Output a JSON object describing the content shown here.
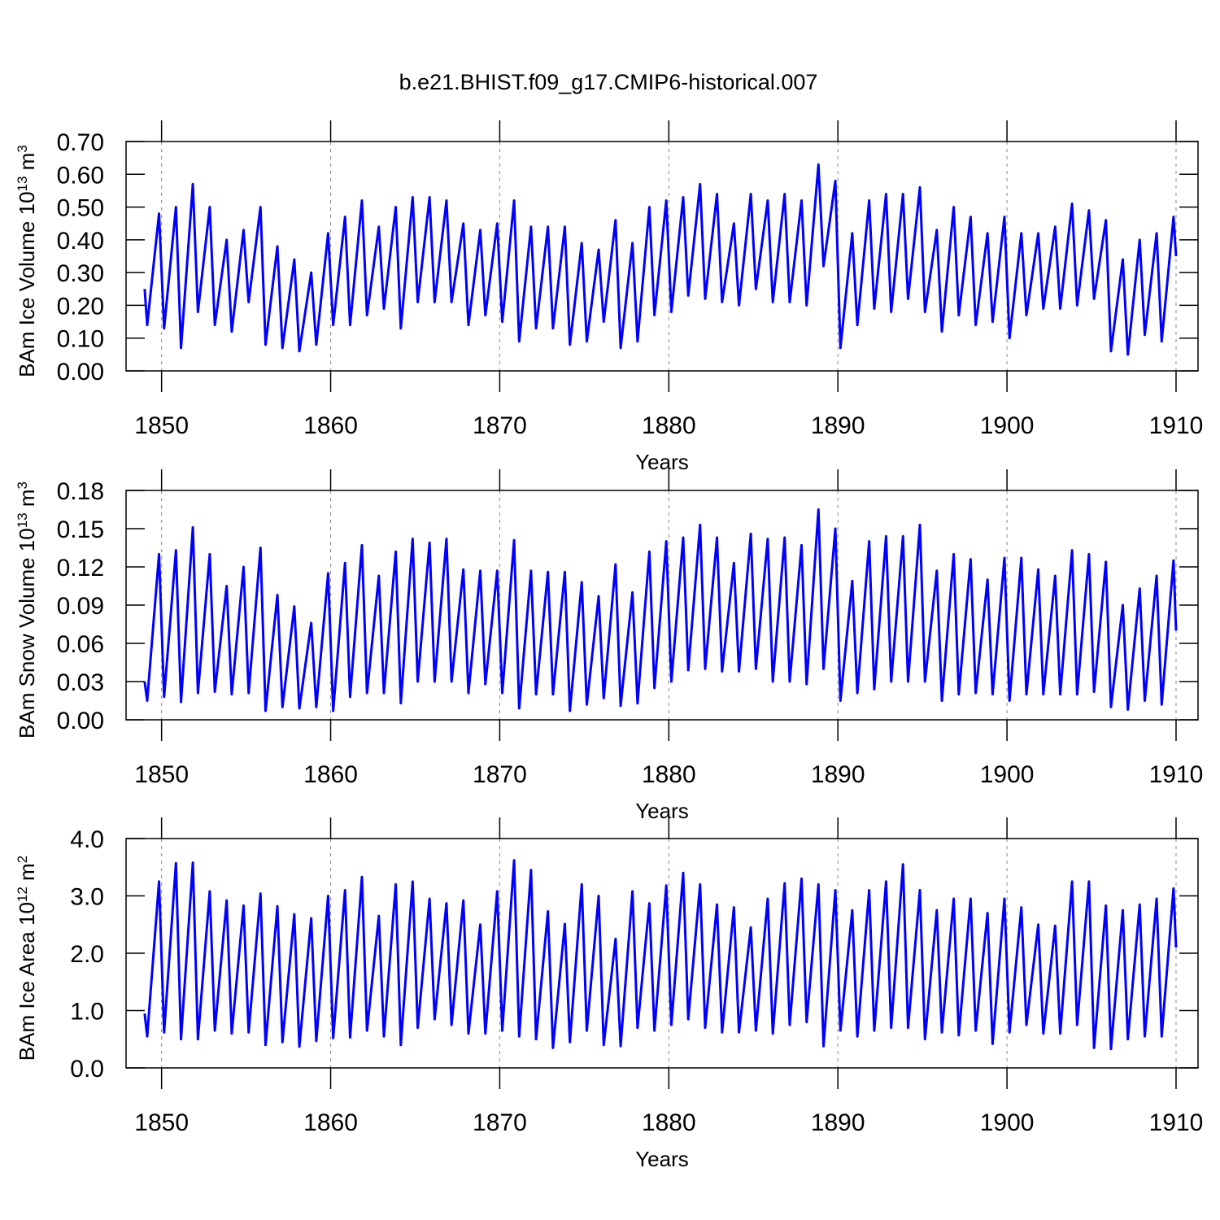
{
  "chart_data": [
    {
      "type": "line",
      "title": "b.e21.BHIST.f09_g17.CMIP6-historical.007",
      "ylabel": {
        "text": "BAm Ice Volume 10",
        "exponent": "13",
        "unit": " m",
        "unit_exponent": "3"
      },
      "xlabel": "Years",
      "color": "#0000ff",
      "xgrid": true,
      "xlim": [
        1847.9,
        1911.3
      ],
      "xticks": [
        1850,
        1860,
        1870,
        1880,
        1890,
        1900,
        1910
      ],
      "ylim": [
        0,
        0.7
      ],
      "yticks": [
        {
          "value": 0,
          "label": "0.00"
        },
        {
          "value": 0.1,
          "label": "0.10"
        },
        {
          "value": 0.2,
          "label": "0.20"
        },
        {
          "value": 0.3,
          "label": "0.30"
        },
        {
          "value": 0.4,
          "label": "0.40"
        },
        {
          "value": 0.5,
          "label": "0.50"
        },
        {
          "value": 0.6,
          "label": "0.60"
        },
        {
          "value": 0.7,
          "label": "0.70"
        }
      ],
      "x": [
        1849.0,
        1849.15,
        1849.85,
        1850.15,
        1850.85,
        1851.15,
        1851.85,
        1852.15,
        1852.85,
        1853.15,
        1853.85,
        1854.15,
        1854.85,
        1855.15,
        1855.85,
        1856.15,
        1856.85,
        1857.15,
        1857.85,
        1858.15,
        1858.85,
        1859.15,
        1859.85,
        1860.15,
        1860.85,
        1861.15,
        1861.85,
        1862.15,
        1862.85,
        1863.15,
        1863.85,
        1864.15,
        1864.85,
        1865.15,
        1865.85,
        1866.15,
        1866.85,
        1867.15,
        1867.85,
        1868.15,
        1868.85,
        1869.15,
        1869.85,
        1870.15,
        1870.85,
        1871.15,
        1871.85,
        1872.15,
        1872.85,
        1873.15,
        1873.85,
        1874.15,
        1874.85,
        1875.15,
        1875.85,
        1876.15,
        1876.85,
        1877.15,
        1877.85,
        1878.15,
        1878.85,
        1879.15,
        1879.85,
        1880.15,
        1880.85,
        1881.15,
        1881.85,
        1882.15,
        1882.85,
        1883.15,
        1883.85,
        1884.15,
        1884.85,
        1885.15,
        1885.85,
        1886.15,
        1886.85,
        1887.15,
        1887.85,
        1888.15,
        1888.85,
        1889.15,
        1889.85,
        1890.15,
        1890.85,
        1891.15,
        1891.85,
        1892.15,
        1892.85,
        1893.15,
        1893.85,
        1894.15,
        1894.85,
        1895.15,
        1895.85,
        1896.15,
        1896.85,
        1897.15,
        1897.85,
        1898.15,
        1898.85,
        1899.15,
        1899.85,
        1900.15,
        1900.85,
        1901.15,
        1901.85,
        1902.15,
        1902.85,
        1903.15,
        1903.85,
        1904.15,
        1904.85,
        1905.15,
        1905.85,
        1906.15,
        1906.85,
        1907.15,
        1907.85,
        1908.15,
        1908.85,
        1909.15,
        1909.85,
        1910.0
      ],
      "values": [
        0.25,
        0.14,
        0.48,
        0.13,
        0.5,
        0.07,
        0.57,
        0.18,
        0.5,
        0.14,
        0.4,
        0.12,
        0.43,
        0.21,
        0.5,
        0.08,
        0.38,
        0.07,
        0.34,
        0.06,
        0.3,
        0.08,
        0.42,
        0.14,
        0.47,
        0.14,
        0.52,
        0.17,
        0.44,
        0.19,
        0.5,
        0.13,
        0.53,
        0.21,
        0.53,
        0.21,
        0.52,
        0.21,
        0.45,
        0.14,
        0.43,
        0.17,
        0.45,
        0.15,
        0.52,
        0.09,
        0.44,
        0.13,
        0.44,
        0.13,
        0.44,
        0.08,
        0.39,
        0.09,
        0.37,
        0.15,
        0.46,
        0.07,
        0.39,
        0.09,
        0.5,
        0.17,
        0.52,
        0.18,
        0.53,
        0.23,
        0.57,
        0.22,
        0.54,
        0.21,
        0.45,
        0.2,
        0.54,
        0.25,
        0.52,
        0.21,
        0.54,
        0.21,
        0.52,
        0.2,
        0.63,
        0.32,
        0.58,
        0.07,
        0.42,
        0.14,
        0.52,
        0.19,
        0.54,
        0.18,
        0.54,
        0.22,
        0.56,
        0.18,
        0.43,
        0.12,
        0.5,
        0.17,
        0.47,
        0.14,
        0.42,
        0.15,
        0.47,
        0.1,
        0.42,
        0.17,
        0.42,
        0.19,
        0.44,
        0.19,
        0.51,
        0.2,
        0.49,
        0.22,
        0.46,
        0.06,
        0.34,
        0.05,
        0.4,
        0.11,
        0.42,
        0.09,
        0.47,
        0.35
      ]
    },
    {
      "type": "line",
      "ylabel": {
        "text": "BAm Snow Volume 10",
        "exponent": "13",
        "unit": " m",
        "unit_exponent": "3"
      },
      "xlabel": "Years",
      "color": "#0000ff",
      "xgrid": true,
      "xlim": [
        1847.9,
        1911.3
      ],
      "xticks": [
        1850,
        1860,
        1870,
        1880,
        1890,
        1900,
        1910
      ],
      "ylim": [
        0,
        0.18
      ],
      "yticks": [
        {
          "value": 0,
          "label": "0.00"
        },
        {
          "value": 0.03,
          "label": "0.03"
        },
        {
          "value": 0.06,
          "label": "0.06"
        },
        {
          "value": 0.09,
          "label": "0.09"
        },
        {
          "value": 0.12,
          "label": "0.12"
        },
        {
          "value": 0.15,
          "label": "0.15"
        },
        {
          "value": 0.18,
          "label": "0.18"
        }
      ],
      "x": [
        1849.0,
        1849.15,
        1849.85,
        1850.15,
        1850.85,
        1851.15,
        1851.85,
        1852.15,
        1852.85,
        1853.15,
        1853.85,
        1854.15,
        1854.85,
        1855.15,
        1855.85,
        1856.15,
        1856.85,
        1857.15,
        1857.85,
        1858.15,
        1858.85,
        1859.15,
        1859.85,
        1860.15,
        1860.85,
        1861.15,
        1861.85,
        1862.15,
        1862.85,
        1863.15,
        1863.85,
        1864.15,
        1864.85,
        1865.15,
        1865.85,
        1866.15,
        1866.85,
        1867.15,
        1867.85,
        1868.15,
        1868.85,
        1869.15,
        1869.85,
        1870.15,
        1870.85,
        1871.15,
        1871.85,
        1872.15,
        1872.85,
        1873.15,
        1873.85,
        1874.15,
        1874.85,
        1875.15,
        1875.85,
        1876.15,
        1876.85,
        1877.15,
        1877.85,
        1878.15,
        1878.85,
        1879.15,
        1879.85,
        1880.15,
        1880.85,
        1881.15,
        1881.85,
        1882.15,
        1882.85,
        1883.15,
        1883.85,
        1884.15,
        1884.85,
        1885.15,
        1885.85,
        1886.15,
        1886.85,
        1887.15,
        1887.85,
        1888.15,
        1888.85,
        1889.15,
        1889.85,
        1890.15,
        1890.85,
        1891.15,
        1891.85,
        1892.15,
        1892.85,
        1893.15,
        1893.85,
        1894.15,
        1894.85,
        1895.15,
        1895.85,
        1896.15,
        1896.85,
        1897.15,
        1897.85,
        1898.15,
        1898.85,
        1899.15,
        1899.85,
        1900.15,
        1900.85,
        1901.15,
        1901.85,
        1902.15,
        1902.85,
        1903.15,
        1903.85,
        1904.15,
        1904.85,
        1905.15,
        1905.85,
        1906.15,
        1906.85,
        1907.15,
        1907.85,
        1908.15,
        1908.85,
        1909.15,
        1909.85,
        1910.0
      ],
      "values": [
        0.03,
        0.015,
        0.13,
        0.018,
        0.133,
        0.014,
        0.151,
        0.021,
        0.13,
        0.022,
        0.105,
        0.02,
        0.12,
        0.021,
        0.135,
        0.007,
        0.098,
        0.01,
        0.089,
        0.009,
        0.076,
        0.01,
        0.115,
        0.007,
        0.123,
        0.018,
        0.137,
        0.021,
        0.113,
        0.021,
        0.132,
        0.013,
        0.142,
        0.03,
        0.139,
        0.03,
        0.142,
        0.03,
        0.118,
        0.021,
        0.117,
        0.028,
        0.117,
        0.021,
        0.141,
        0.009,
        0.117,
        0.02,
        0.116,
        0.02,
        0.116,
        0.007,
        0.108,
        0.012,
        0.097,
        0.017,
        0.122,
        0.011,
        0.1,
        0.013,
        0.132,
        0.025,
        0.14,
        0.03,
        0.143,
        0.039,
        0.153,
        0.04,
        0.143,
        0.038,
        0.123,
        0.038,
        0.146,
        0.04,
        0.142,
        0.03,
        0.143,
        0.03,
        0.137,
        0.028,
        0.165,
        0.04,
        0.15,
        0.015,
        0.109,
        0.021,
        0.14,
        0.024,
        0.144,
        0.03,
        0.144,
        0.03,
        0.153,
        0.03,
        0.117,
        0.015,
        0.13,
        0.02,
        0.126,
        0.021,
        0.11,
        0.02,
        0.127,
        0.015,
        0.127,
        0.02,
        0.118,
        0.02,
        0.113,
        0.02,
        0.133,
        0.02,
        0.13,
        0.022,
        0.124,
        0.01,
        0.09,
        0.008,
        0.103,
        0.015,
        0.113,
        0.012,
        0.125,
        0.07
      ]
    },
    {
      "type": "line",
      "ylabel": {
        "text": "BAm Ice Area 10",
        "exponent": "12",
        "unit": " m",
        "unit_exponent": "2"
      },
      "xlabel": "Years",
      "color": "#0000ff",
      "xgrid": true,
      "xlim": [
        1847.9,
        1911.3
      ],
      "xticks": [
        1850,
        1860,
        1870,
        1880,
        1890,
        1900,
        1910
      ],
      "ylim": [
        0,
        4
      ],
      "yticks": [
        {
          "value": 0,
          "label": "0.0"
        },
        {
          "value": 1,
          "label": "1.0"
        },
        {
          "value": 2,
          "label": "2.0"
        },
        {
          "value": 3,
          "label": "3.0"
        },
        {
          "value": 4,
          "label": "4.0"
        }
      ],
      "x": [
        1849.0,
        1849.15,
        1849.85,
        1850.15,
        1850.85,
        1851.15,
        1851.85,
        1852.15,
        1852.85,
        1853.15,
        1853.85,
        1854.15,
        1854.85,
        1855.15,
        1855.85,
        1856.15,
        1856.85,
        1857.15,
        1857.85,
        1858.15,
        1858.85,
        1859.15,
        1859.85,
        1860.15,
        1860.85,
        1861.15,
        1861.85,
        1862.15,
        1862.85,
        1863.15,
        1863.85,
        1864.15,
        1864.85,
        1865.15,
        1865.85,
        1866.15,
        1866.85,
        1867.15,
        1867.85,
        1868.15,
        1868.85,
        1869.15,
        1869.85,
        1870.15,
        1870.85,
        1871.15,
        1871.85,
        1872.15,
        1872.85,
        1873.15,
        1873.85,
        1874.15,
        1874.85,
        1875.15,
        1875.85,
        1876.15,
        1876.85,
        1877.15,
        1877.85,
        1878.15,
        1878.85,
        1879.15,
        1879.85,
        1880.15,
        1880.85,
        1881.15,
        1881.85,
        1882.15,
        1882.85,
        1883.15,
        1883.85,
        1884.15,
        1884.85,
        1885.15,
        1885.85,
        1886.15,
        1886.85,
        1887.15,
        1887.85,
        1888.15,
        1888.85,
        1889.15,
        1889.85,
        1890.15,
        1890.85,
        1891.15,
        1891.85,
        1892.15,
        1892.85,
        1893.15,
        1893.85,
        1894.15,
        1894.85,
        1895.15,
        1895.85,
        1896.15,
        1896.85,
        1897.15,
        1897.85,
        1898.15,
        1898.85,
        1899.15,
        1899.85,
        1900.15,
        1900.85,
        1901.15,
        1901.85,
        1902.15,
        1902.85,
        1903.15,
        1903.85,
        1904.15,
        1904.85,
        1905.15,
        1905.85,
        1906.15,
        1906.85,
        1907.15,
        1907.85,
        1908.15,
        1908.85,
        1909.15,
        1909.85,
        1910.0
      ],
      "values": [
        0.95,
        0.55,
        3.25,
        0.62,
        3.57,
        0.5,
        3.58,
        0.5,
        3.08,
        0.65,
        2.92,
        0.6,
        2.83,
        0.62,
        3.04,
        0.4,
        2.82,
        0.45,
        2.68,
        0.37,
        2.61,
        0.47,
        3.0,
        0.52,
        3.1,
        0.53,
        3.33,
        0.65,
        2.65,
        0.55,
        3.2,
        0.4,
        3.25,
        0.7,
        2.95,
        0.85,
        2.87,
        0.75,
        2.92,
        0.6,
        2.5,
        0.6,
        3.08,
        0.65,
        3.62,
        0.55,
        3.45,
        0.5,
        2.73,
        0.35,
        2.51,
        0.45,
        3.2,
        0.65,
        3.0,
        0.4,
        2.25,
        0.38,
        3.08,
        0.7,
        2.87,
        0.65,
        3.18,
        0.75,
        3.4,
        0.85,
        3.2,
        0.7,
        2.85,
        0.62,
        2.8,
        0.62,
        2.45,
        0.65,
        2.95,
        0.6,
        3.22,
        0.75,
        3.3,
        0.8,
        3.2,
        0.38,
        3.1,
        0.65,
        2.75,
        0.55,
        3.1,
        0.65,
        3.25,
        0.7,
        3.55,
        0.7,
        3.1,
        0.5,
        2.75,
        0.62,
        2.95,
        0.57,
        2.95,
        0.65,
        2.7,
        0.42,
        2.95,
        0.62,
        2.8,
        0.75,
        2.5,
        0.6,
        2.48,
        0.6,
        3.25,
        0.75,
        3.25,
        0.35,
        2.83,
        0.33,
        2.75,
        0.5,
        2.85,
        0.55,
        2.95,
        0.55,
        3.13,
        2.1
      ]
    }
  ]
}
